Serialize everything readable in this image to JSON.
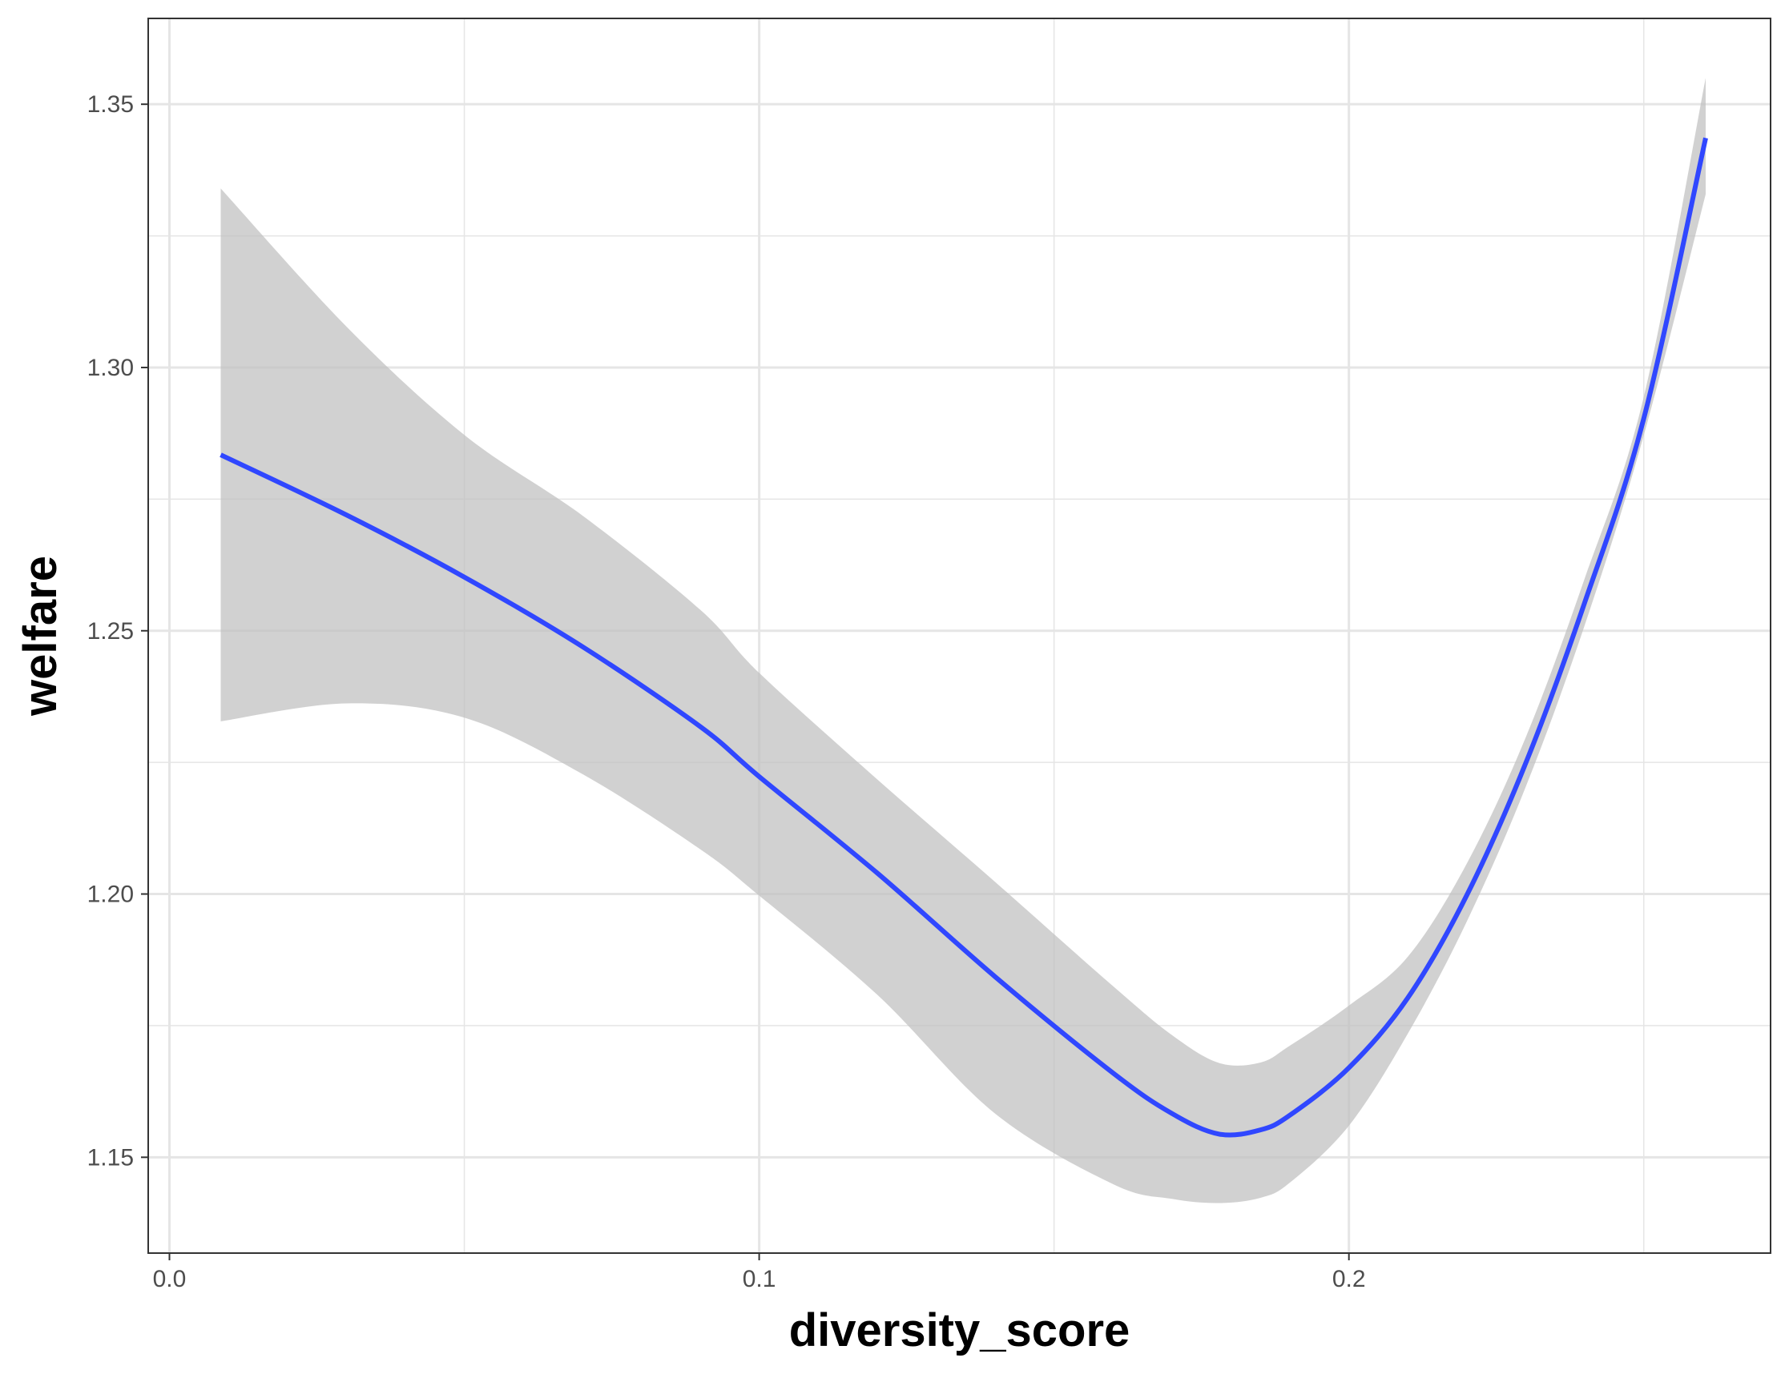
{
  "chart_data": {
    "type": "line",
    "title": "",
    "xlabel": "diversity_score",
    "ylabel": "welfare",
    "xlim": [
      -0.0036,
      0.2715
    ],
    "ylim": [
      1.1318,
      1.3663
    ],
    "x_ticks": {
      "values": [
        0.0,
        0.1,
        0.2
      ],
      "labels": [
        "0.0",
        "0.1",
        "0.2"
      ],
      "minor": [
        0.05,
        0.15,
        0.25
      ]
    },
    "y_ticks": {
      "values": [
        1.15,
        1.2,
        1.25,
        1.3,
        1.35
      ],
      "labels": [
        "1.15",
        "1.20",
        "1.25",
        "1.30",
        "1.35"
      ],
      "minor": [
        1.175,
        1.225,
        1.275,
        1.325
      ]
    },
    "grid": true,
    "legend": "none",
    "colors": {
      "line": "#3047ff",
      "ribbon": "#bfbfbf",
      "grid": "#e5e5e5",
      "panel_border": "#333333"
    },
    "series": [
      {
        "x": [
          0.0087,
          0.03,
          0.05,
          0.07,
          0.09,
          0.1,
          0.12,
          0.14,
          0.16,
          0.17,
          0.178,
          0.185,
          0.19,
          0.2,
          0.21,
          0.22,
          0.23,
          0.24,
          0.25,
          0.2605
        ],
        "y": [
          1.2834,
          1.272,
          1.2602,
          1.247,
          1.2318,
          1.2223,
          1.204,
          1.1843,
          1.166,
          1.1583,
          1.1544,
          1.1552,
          1.158,
          1.167,
          1.1803,
          1.1998,
          1.2249,
          1.2554,
          1.2903,
          1.3436
        ],
        "lower": [
          1.2328,
          1.2362,
          1.2335,
          1.2228,
          1.2085,
          1.1997,
          1.1809,
          1.1583,
          1.1449,
          1.1421,
          1.1413,
          1.1423,
          1.1452,
          1.156,
          1.1735,
          1.1948,
          1.2204,
          1.2511,
          1.2871,
          1.3329
        ],
        "upper": [
          1.334,
          1.3078,
          1.2872,
          1.2719,
          1.254,
          1.242,
          1.2218,
          1.2023,
          1.1825,
          1.1732,
          1.1679,
          1.168,
          1.1712,
          1.1788,
          1.1881,
          1.2058,
          1.2298,
          1.26,
          1.2944,
          1.355
        ]
      }
    ]
  }
}
